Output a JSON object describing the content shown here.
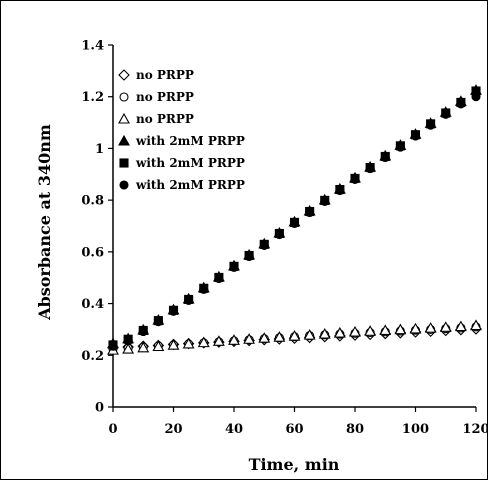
{
  "chart_data": {
    "type": "scatter",
    "title": "",
    "xlabel": "Time, min",
    "ylabel": "Absorbance at 340nm",
    "xlim": [
      0,
      120
    ],
    "ylim": [
      0,
      1.4
    ],
    "xticks": [
      0,
      20,
      40,
      60,
      80,
      100,
      120
    ],
    "yticks": [
      0,
      0.2,
      0.4,
      0.6,
      0.8,
      1,
      1.2,
      1.4
    ],
    "xtick_labels": [
      "0",
      "20",
      "40",
      "60",
      "80",
      "100",
      "120"
    ],
    "ytick_labels": [
      "0",
      "0.2",
      "0.4",
      "0.6",
      "0.8",
      "1",
      "1.2",
      "1.4"
    ],
    "grid": false,
    "legend_position": "top-left",
    "x": [
      0,
      5,
      10,
      15,
      20,
      25,
      30,
      35,
      40,
      45,
      50,
      55,
      60,
      65,
      70,
      75,
      80,
      85,
      90,
      95,
      100,
      105,
      110,
      115,
      120
    ],
    "series": [
      {
        "name": "no PRPP",
        "marker": "diamond-open",
        "values": [
          0.23,
          0.232,
          0.235,
          0.238,
          0.242,
          0.245,
          0.248,
          0.251,
          0.254,
          0.257,
          0.26,
          0.263,
          0.266,
          0.269,
          0.272,
          0.275,
          0.278,
          0.281,
          0.284,
          0.287,
          0.29,
          0.293,
          0.296,
          0.299,
          0.302
        ]
      },
      {
        "name": "no PRPP",
        "marker": "circle-open",
        "values": [
          0.225,
          0.228,
          0.232,
          0.236,
          0.24,
          0.244,
          0.248,
          0.252,
          0.256,
          0.26,
          0.264,
          0.268,
          0.272,
          0.276,
          0.279,
          0.282,
          0.285,
          0.288,
          0.291,
          0.294,
          0.297,
          0.3,
          0.303,
          0.306,
          0.31
        ]
      },
      {
        "name": "no PRPP",
        "marker": "triangle-open",
        "values": [
          0.22,
          0.224,
          0.229,
          0.234,
          0.239,
          0.244,
          0.249,
          0.254,
          0.258,
          0.262,
          0.266,
          0.27,
          0.274,
          0.278,
          0.282,
          0.286,
          0.29,
          0.293,
          0.296,
          0.299,
          0.302,
          0.305,
          0.308,
          0.311,
          0.315
        ]
      },
      {
        "name": "with 2mM PRPP",
        "marker": "triangle-filled",
        "values": [
          0.245,
          0.264,
          0.298,
          0.336,
          0.376,
          0.418,
          0.461,
          0.503,
          0.546,
          0.588,
          0.631,
          0.673,
          0.716,
          0.758,
          0.801,
          0.843,
          0.886,
          0.928,
          0.971,
          1.012,
          1.055,
          1.097,
          1.14,
          1.182,
          1.225
        ]
      },
      {
        "name": "with 2mM PRPP",
        "marker": "square-filled",
        "values": [
          0.24,
          0.262,
          0.296,
          0.334,
          0.374,
          0.416,
          0.459,
          0.501,
          0.544,
          0.586,
          0.629,
          0.671,
          0.714,
          0.756,
          0.799,
          0.841,
          0.884,
          0.926,
          0.969,
          1.01,
          1.053,
          1.095,
          1.137,
          1.178,
          1.222
        ]
      },
      {
        "name": "with 2mM PRPP",
        "marker": "circle-filled",
        "values": [
          0.235,
          0.258,
          0.292,
          0.33,
          0.37,
          0.412,
          0.455,
          0.497,
          0.54,
          0.582,
          0.625,
          0.667,
          0.71,
          0.752,
          0.795,
          0.837,
          0.88,
          0.922,
          0.965,
          1.005,
          1.048,
          1.09,
          1.132,
          1.172,
          1.2
        ]
      }
    ]
  }
}
